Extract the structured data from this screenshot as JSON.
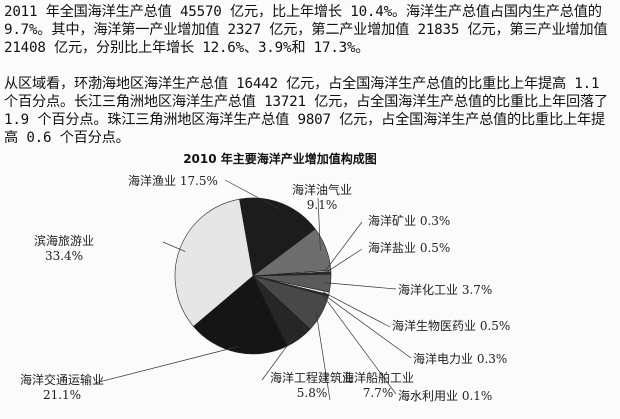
{
  "paragraphs": [
    "2011 年全国海洋生产总值 45570 亿元，比上年增长 10.4%。海洋生产总值占国内生产总值的 9.7%。其中，海洋第一产业增加值 2327 亿元，第二产业增加值 21835 亿元，第三产业增加值 21408 亿元，分别比上年增长 12.6%、3.9%和 17.3%。",
    "从区域看，环渤海地区海洋生产总值 16442 亿元，占全国海洋生产总值的比重比上年提高 1.1 个百分点。长江三角洲地区海洋生产总值 13721 亿元，占全国海洋生产总值的比重比上年回落了 1.9 个百分点。珠江三角洲地区海洋生产总值 9807 亿元，占全国海洋生产总值的比重比上年提高 0.6 个百分点。"
  ],
  "chart_data": {
    "type": "pie",
    "title": "2010 年主要海洋产业增加值构成图",
    "slices": [
      {
        "name": "海洋渔业",
        "value": 17.5,
        "label": "17.5%",
        "color": "#1c1c1c"
      },
      {
        "name": "海洋油气业",
        "value": 9.1,
        "label": "9.1%",
        "color": "#6e6e6e"
      },
      {
        "name": "海洋矿业",
        "value": 0.3,
        "label": "0.3%",
        "color": "#d8d8d8"
      },
      {
        "name": "海洋盐业",
        "value": 0.5,
        "label": "0.5%",
        "color": "#2a2a2a"
      },
      {
        "name": "海洋化工业",
        "value": 3.7,
        "label": "3.7%",
        "color": "#5a5a5a"
      },
      {
        "name": "海洋生物医药业",
        "value": 0.5,
        "label": "0.5%",
        "color": "#f0f0f0"
      },
      {
        "name": "海洋电力业",
        "value": 0.3,
        "label": "0.3%",
        "color": "#333333"
      },
      {
        "name": "海水利用业",
        "value": 0.1,
        "label": "0.1%",
        "color": "#cccccc"
      },
      {
        "name": "海洋船舶工业",
        "value": 7.7,
        "label": "7.7%",
        "color": "#484848"
      },
      {
        "name": "海洋工程建筑业",
        "value": 5.8,
        "label": "5.8%",
        "color": "#262626"
      },
      {
        "name": "海洋交通运输业",
        "value": 21.1,
        "label": "21.1%",
        "color": "#151515"
      },
      {
        "name": "滨海旅游业",
        "value": 33.4,
        "label": "33.4%",
        "color": "#e6e6e6"
      }
    ]
  }
}
